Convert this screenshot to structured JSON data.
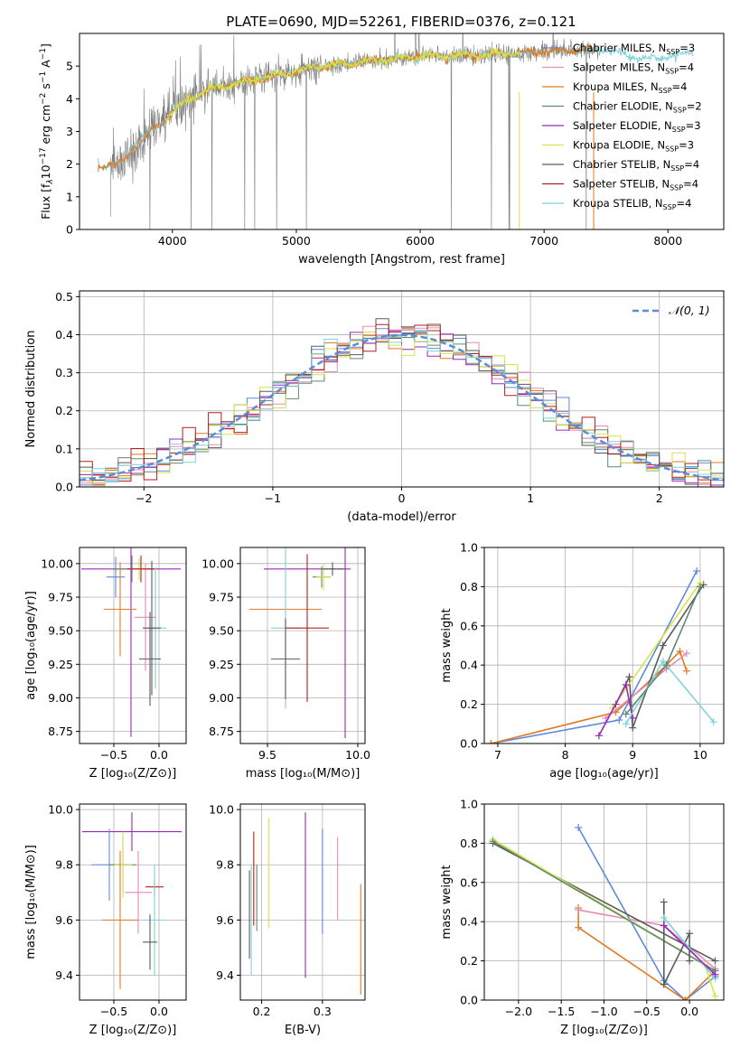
{
  "figure_title": "PLATE=0690, MJD=52261, FIBERID=0376, z=0.121",
  "colors": {
    "c_miles": "#5b8bd9",
    "s_miles": "#e88ab6",
    "k_miles": "#e07a24",
    "c_elodie": "#5f8a72",
    "s_elodie": "#9a28b8",
    "k_elodie": "#d8e24a",
    "c_stelib": "#5a5a5a",
    "s_stelib": "#b02020",
    "k_stelib": "#7fd3da",
    "spectrum": "#7f7f7f",
    "gaussian": "#5b8bd9",
    "grid": "#b0b0b0"
  },
  "chart_data": [
    {
      "id": "spectrum",
      "type": "line",
      "title": "",
      "xlabel": "wavelength [Angstrom, rest frame]",
      "ylabel_parts": [
        "Flux [f",
        "λ",
        "10",
        "−17",
        " erg cm",
        "−2",
        " s",
        "−1",
        " A",
        "−1",
        "]"
      ],
      "xlim": [
        3250,
        8450
      ],
      "ylim": [
        0,
        6
      ],
      "xticks": [
        4000,
        5000,
        6000,
        7000,
        8000
      ],
      "yticks": [
        0,
        1,
        2,
        3,
        4,
        5
      ],
      "grid": false,
      "legend_position": "top-right",
      "legend": [
        {
          "label": "Chabrier MILES, N",
          "sub": "SSP",
          "tail": "=3",
          "key": "c_miles"
        },
        {
          "label": "Salpeter MILES, N",
          "sub": "SSP",
          "tail": "=4",
          "key": "s_miles"
        },
        {
          "label": "Kroupa MILES, N",
          "sub": "SSP",
          "tail": "=4",
          "key": "k_miles"
        },
        {
          "label": "Chabrier ELODIE, N",
          "sub": "SSP",
          "tail": "=2",
          "key": "c_elodie"
        },
        {
          "label": "Salpeter ELODIE, N",
          "sub": "SSP",
          "tail": "=3",
          "key": "s_elodie"
        },
        {
          "label": "Kroupa ELODIE, N",
          "sub": "SSP",
          "tail": "=3",
          "key": "k_elodie"
        },
        {
          "label": "Chabrier STELIB, N",
          "sub": "SSP",
          "tail": "=4",
          "key": "c_stelib"
        },
        {
          "label": "Salpeter STELIB, N",
          "sub": "SSP",
          "tail": "=4",
          "key": "s_stelib"
        },
        {
          "label": "Kroupa STELIB, N",
          "sub": "SSP",
          "tail": "=4",
          "key": "k_stelib"
        }
      ],
      "continuum": {
        "x": [
          3400,
          3600,
          3700,
          3800,
          3900,
          4000,
          4100,
          4300,
          4500,
          4800,
          5200,
          5600,
          6000,
          6500,
          7000,
          7500,
          7800,
          8200
        ],
        "y": [
          1.95,
          2.05,
          2.6,
          2.9,
          3.2,
          3.6,
          3.9,
          4.3,
          4.45,
          4.7,
          5.0,
          5.15,
          5.3,
          5.35,
          5.45,
          5.5,
          5.2,
          5.4
        ]
      },
      "model_ranges": [
        {
          "key": "k_stelib",
          "x": [
            3400,
            8200
          ]
        },
        {
          "key": "k_miles",
          "x": [
            3400,
            7400
          ]
        },
        {
          "key": "k_elodie",
          "x": [
            3950,
            6800
          ]
        }
      ],
      "spectrum_range": [
        3500,
        7450
      ]
    },
    {
      "id": "residuals",
      "type": "step",
      "title": "",
      "xlabel": "(data-model)/error",
      "ylabel": "Normed distribution",
      "xlim": [
        -2.5,
        2.5
      ],
      "ylim": [
        0,
        0.515
      ],
      "xticks": [
        -2,
        -1,
        0,
        1,
        2
      ],
      "yticks": [
        0.0,
        0.1,
        0.2,
        0.3,
        0.4,
        0.5
      ],
      "grid": true,
      "legend_position": "top-right",
      "legend": [
        {
          "label": "𝒩(0, 1)",
          "key": "gaussian",
          "style": "dashed"
        }
      ],
      "bin_width": 0.1
    },
    {
      "id": "age-z",
      "type": "errorbar",
      "xlabel": "Z [log₁₀(Z/Z⊙)]",
      "ylabel": "age  [log₁₀(age/yr)]",
      "xlim": [
        -0.88,
        0.3
      ],
      "ylim": [
        8.66,
        10.12
      ],
      "xticks": [
        -0.5,
        0.0
      ],
      "yticks": [
        8.75,
        9.0,
        9.25,
        9.5,
        9.75,
        10.0
      ],
      "grid": true,
      "points": [
        {
          "key": "c_miles",
          "x": -0.48,
          "y": 9.9,
          "xerr": 0.1,
          "yerr": 0.15
        },
        {
          "key": "s_elodie",
          "x": -0.31,
          "y": 9.96,
          "xerr": 0.55,
          "yerr": 1.25
        },
        {
          "key": "k_miles",
          "x": -0.43,
          "y": 9.66,
          "xerr": 0.18,
          "yerr": 0.35
        },
        {
          "key": "s_miles",
          "x": -0.15,
          "y": 9.6,
          "xerr": 0.12,
          "yerr": 0.4
        },
        {
          "key": "k_stelib",
          "x": -0.04,
          "y": 9.52,
          "xerr": 0.12,
          "yerr": 0.45
        },
        {
          "key": "c_stelib",
          "x": -0.08,
          "y": 9.52,
          "xerr": 0.1,
          "yerr": 0.5
        },
        {
          "key": "c_stelib",
          "x": -0.1,
          "y": 9.29,
          "xerr": 0.12,
          "yerr": 0.35
        },
        {
          "key": "c_elodie",
          "x": -0.3,
          "y": 9.96,
          "xerr": 0.2,
          "yerr": 0.1
        },
        {
          "key": "k_elodie",
          "x": -0.22,
          "y": 9.96,
          "xerr": 0.1,
          "yerr": 0.08
        },
        {
          "key": "s_stelib",
          "x": -0.2,
          "y": 9.96,
          "xerr": 0.15,
          "yerr": 0.1
        }
      ]
    },
    {
      "id": "age-mass",
      "type": "errorbar",
      "xlabel": "mass [log₁₀(M/M⊙)]",
      "ylabel": "",
      "xlim": [
        9.35,
        10.04
      ],
      "ylim": [
        8.66,
        10.12
      ],
      "xticks": [
        9.5,
        10.0
      ],
      "yticks": [
        8.75,
        9.0,
        9.25,
        9.5,
        9.75,
        10.0
      ],
      "grid": true,
      "points": [
        {
          "key": "s_elodie",
          "x": 9.72,
          "y": 9.96,
          "xerr": 0.24,
          "yerr": 0.0
        },
        {
          "key": "k_miles",
          "x": 9.6,
          "y": 9.66,
          "xerr": 0.2,
          "yerr": 0.0
        },
        {
          "key": "k_stelib",
          "x": 9.6,
          "y": 9.52,
          "xerr": 0.08,
          "yerr": 0.6
        },
        {
          "key": "s_stelib",
          "x": 9.72,
          "y": 9.52,
          "xerr": 0.12,
          "yerr": 0.55
        },
        {
          "key": "c_stelib",
          "x": 9.6,
          "y": 9.29,
          "xerr": 0.08,
          "yerr": 0.3
        },
        {
          "key": "s_elodie",
          "x": 9.93,
          "y": 9.5,
          "xerr": 0.0,
          "yerr": 0.8
        },
        {
          "key": "c_elodie",
          "x": 9.8,
          "y": 9.9,
          "xerr": 0.05,
          "yerr": 0.08
        },
        {
          "key": "k_elodie",
          "x": 9.81,
          "y": 9.9,
          "xerr": 0.04,
          "yerr": 0.1
        },
        {
          "key": "c_stelib",
          "x": 9.86,
          "y": 9.96,
          "xerr": 0.06,
          "yerr": 0.05
        }
      ]
    },
    {
      "id": "mass-weight-age",
      "type": "line",
      "xlabel": "age  [log₁₀(age/yr)]",
      "ylabel": "mass weight",
      "xlim": [
        6.8,
        10.35
      ],
      "ylim": [
        0,
        1.0
      ],
      "xticks": [
        7,
        8,
        9,
        10
      ],
      "yticks": [
        0.0,
        0.2,
        0.4,
        0.6,
        0.8,
        1.0
      ],
      "grid": true,
      "series": [
        {
          "key": "c_miles",
          "x": [
            6.9,
            8.8,
            9.95
          ],
          "y": [
            0.0,
            0.12,
            0.88
          ]
        },
        {
          "key": "k_miles",
          "x": [
            6.9,
            8.75,
            9.5,
            9.7,
            9.8
          ],
          "y": [
            0.0,
            0.16,
            0.4,
            0.47,
            0.37
          ]
        },
        {
          "key": "s_miles",
          "x": [
            8.6,
            9.5,
            9.8
          ],
          "y": [
            0.13,
            0.38,
            0.46
          ]
        },
        {
          "key": "c_stelib",
          "x": [
            8.75,
            8.95,
            9.0,
            9.45,
            10.05
          ],
          "y": [
            0.2,
            0.34,
            0.08,
            0.5,
            0.81
          ]
        },
        {
          "key": "k_elodie",
          "x": [
            8.7,
            10.0
          ],
          "y": [
            0.18,
            0.82
          ]
        },
        {
          "key": "s_elodie",
          "x": [
            8.5,
            8.9,
            9.0
          ],
          "y": [
            0.04,
            0.3,
            0.13
          ]
        },
        {
          "key": "k_stelib",
          "x": [
            8.9,
            9.45,
            10.2
          ],
          "y": [
            0.1,
            0.42,
            0.11
          ]
        },
        {
          "key": "c_elodie",
          "x": [
            8.9,
            9.5,
            10.0
          ],
          "y": [
            0.15,
            0.4,
            0.8
          ]
        }
      ]
    },
    {
      "id": "mass-z",
      "type": "errorbar",
      "xlabel": "Z [log₁₀(Z/Z⊙)]",
      "ylabel": "mass [log₁₀(M/M⊙)]",
      "xlim": [
        -0.88,
        0.3
      ],
      "ylim": [
        9.31,
        10.02
      ],
      "xticks": [
        -0.5,
        0.0
      ],
      "yticks": [
        9.4,
        9.6,
        9.8,
        10.0
      ],
      "grid": true,
      "points": [
        {
          "key": "s_elodie",
          "x": -0.3,
          "y": 9.92,
          "xerr": 0.55,
          "yerr": 0.07
        },
        {
          "key": "c_miles",
          "x": -0.55,
          "y": 9.8,
          "xerr": 0.2,
          "yerr": 0.13
        },
        {
          "key": "c_elodie",
          "x": -0.4,
          "y": 9.8,
          "xerr": 0.15,
          "yerr": 0.1
        },
        {
          "key": "k_elodie",
          "x": -0.4,
          "y": 9.8,
          "xerr": 0.1,
          "yerr": 0.12
        },
        {
          "key": "k_miles",
          "x": -0.43,
          "y": 9.6,
          "xerr": 0.2,
          "yerr": 0.25
        },
        {
          "key": "s_miles",
          "x": -0.23,
          "y": 9.7,
          "xerr": 0.15,
          "yerr": 0.15
        },
        {
          "key": "s_stelib",
          "x": -0.05,
          "y": 9.72,
          "xerr": 0.1,
          "yerr": 0.03
        },
        {
          "key": "k_stelib",
          "x": -0.05,
          "y": 9.6,
          "xerr": 0.12,
          "yerr": 0.2
        },
        {
          "key": "c_stelib",
          "x": -0.1,
          "y": 9.52,
          "xerr": 0.08,
          "yerr": 0.1
        }
      ]
    },
    {
      "id": "mass-ebv",
      "type": "errorbar",
      "xlabel": "E(B-V)",
      "ylabel": "",
      "xlim": [
        0.165,
        0.37
      ],
      "ylim": [
        9.31,
        10.02
      ],
      "xticks": [
        0.2,
        0.3
      ],
      "yticks": [
        9.4,
        9.6,
        9.8,
        10.0
      ],
      "grid": true,
      "points": [
        {
          "key": "c_stelib",
          "x": 0.18,
          "y": 9.62,
          "xerr": 0.0,
          "yerr": 0.16
        },
        {
          "key": "k_stelib",
          "x": 0.183,
          "y": 9.6,
          "xerr": 0.0,
          "yerr": 0.2
        },
        {
          "key": "s_stelib",
          "x": 0.187,
          "y": 9.75,
          "xerr": 0.0,
          "yerr": 0.17
        },
        {
          "key": "c_elodie",
          "x": 0.192,
          "y": 9.68,
          "xerr": 0.0,
          "yerr": 0.12
        },
        {
          "key": "k_elodie",
          "x": 0.212,
          "y": 9.77,
          "xerr": 0.0,
          "yerr": 0.2
        },
        {
          "key": "s_elodie",
          "x": 0.272,
          "y": 9.69,
          "xerr": 0.0,
          "yerr": 0.3
        },
        {
          "key": "c_miles",
          "x": 0.3,
          "y": 9.74,
          "xerr": 0.0,
          "yerr": 0.19
        },
        {
          "key": "s_miles",
          "x": 0.325,
          "y": 9.75,
          "xerr": 0.0,
          "yerr": 0.15
        },
        {
          "key": "k_miles",
          "x": 0.363,
          "y": 9.53,
          "xerr": 0.0,
          "yerr": 0.2
        }
      ]
    },
    {
      "id": "mass-weight-z",
      "type": "line",
      "xlabel": "Z [log₁₀(Z/Z⊙)]",
      "ylabel": "mass weight",
      "xlim": [
        -2.4,
        0.4
      ],
      "ylim": [
        0,
        1.0
      ],
      "xticks": [
        -2.0,
        -1.5,
        -1.0,
        -0.5,
        0.0
      ],
      "yticks": [
        0.0,
        0.2,
        0.4,
        0.6,
        0.8,
        1.0
      ],
      "grid": true,
      "series": [
        {
          "key": "c_miles",
          "x": [
            -1.3,
            -0.3,
            -0.05,
            0.3
          ],
          "y": [
            0.88,
            0.1,
            0.0,
            0.12
          ]
        },
        {
          "key": "k_miles",
          "x": [
            -1.3,
            -1.3,
            -0.05,
            0.3
          ],
          "y": [
            0.47,
            0.37,
            0.0,
            0.15
          ]
        },
        {
          "key": "s_miles",
          "x": [
            -1.3,
            -0.3,
            0.3
          ],
          "y": [
            0.46,
            0.38,
            0.16
          ]
        },
        {
          "key": "c_stelib",
          "x": [
            -2.3,
            0.3
          ],
          "y": [
            0.8,
            0.2
          ]
        },
        {
          "key": "k_elodie",
          "x": [
            -2.3,
            0.18,
            0.3
          ],
          "y": [
            0.82,
            0.18,
            0.02
          ]
        },
        {
          "key": "c_elodie",
          "x": [
            -2.3,
            0.3
          ],
          "y": [
            0.81,
            0.15
          ]
        },
        {
          "key": "c_stelib",
          "x": [
            -0.3,
            -0.3,
            0.0,
            0.0
          ],
          "y": [
            0.5,
            0.08,
            0.34,
            0.2
          ]
        },
        {
          "key": "k_stelib",
          "x": [
            -0.3,
            0.3
          ],
          "y": [
            0.42,
            0.11
          ]
        },
        {
          "key": "s_elodie",
          "x": [
            -0.3,
            0.3
          ],
          "y": [
            0.38,
            0.13
          ]
        }
      ]
    }
  ]
}
